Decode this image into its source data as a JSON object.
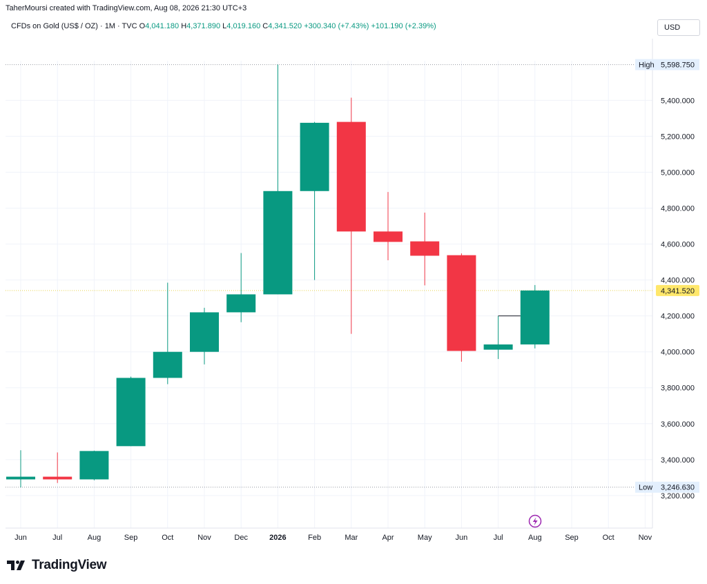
{
  "header": {
    "attribution": "TaherMoursi created with TradingView.com, Aug 08, 2026 21:30 UTC+3",
    "symbol": "CFDs on Gold (US$ / OZ) · 1M · TVC",
    "open_label": "O",
    "open": "4,041.180",
    "high_label": "H",
    "high": "4,371.890",
    "low_label": "L",
    "low": "4,019.160",
    "close_label": "C",
    "close": "4,341.520",
    "change": "+300.340 (+7.43%)",
    "change2": "+101.190 (+2.39%)",
    "currency": "USD"
  },
  "chart_data": {
    "type": "candlestick",
    "categories": [
      "Jun",
      "Jul",
      "Aug",
      "Sep",
      "Oct",
      "Nov",
      "Dec",
      "2026",
      "Feb",
      "Mar",
      "Apr",
      "May",
      "Jun",
      "Jul",
      "Aug"
    ],
    "candles": [
      {
        "o": 3290,
        "h": 3452,
        "l": 3245,
        "c": 3305
      },
      {
        "o": 3305,
        "h": 3440,
        "l": 3270,
        "c": 3290
      },
      {
        "o": 3290,
        "h": 3450,
        "l": 3285,
        "c": 3448
      },
      {
        "o": 3475,
        "h": 3862,
        "l": 3475,
        "c": 3855
      },
      {
        "o": 3855,
        "h": 4385,
        "l": 3820,
        "c": 4000
      },
      {
        "o": 4000,
        "h": 4245,
        "l": 3930,
        "c": 4220
      },
      {
        "o": 4220,
        "h": 4550,
        "l": 4165,
        "c": 4320
      },
      {
        "o": 4320,
        "h": 5598.75,
        "l": 4320,
        "c": 4895
      },
      {
        "o": 4895,
        "h": 5280,
        "l": 4400,
        "c": 5275
      },
      {
        "o": 5280,
        "h": 5415,
        "l": 4100,
        "c": 4670
      },
      {
        "o": 4670,
        "h": 4890,
        "l": 4510,
        "c": 4612
      },
      {
        "o": 4615,
        "h": 4775,
        "l": 4370,
        "c": 4535
      },
      {
        "o": 4538,
        "h": 4548,
        "l": 3945,
        "c": 4005
      },
      {
        "o": 4012,
        "h": 4200,
        "l": 3960,
        "c": 4041.18
      },
      {
        "o": 4041.18,
        "h": 4371.89,
        "l": 4019.16,
        "c": 4341.52
      }
    ],
    "x_axis_labels": [
      "Jun",
      "Jul",
      "Aug",
      "Sep",
      "Oct",
      "Nov",
      "Dec",
      "2026",
      "Feb",
      "Mar",
      "Apr",
      "May",
      "Jun",
      "Jul",
      "Aug",
      "Sep",
      "Oct",
      "Nov"
    ],
    "y_ticks": [
      {
        "value": 3200,
        "label": "3,200.000"
      },
      {
        "value": 3400,
        "label": "3,400.000"
      },
      {
        "value": 3600,
        "label": "3,600.000"
      },
      {
        "value": 3800,
        "label": "3,800.000"
      },
      {
        "value": 4000,
        "label": "4,000.000"
      },
      {
        "value": 4200,
        "label": "4,200.000"
      },
      {
        "value": 4400,
        "label": "4,400.000"
      },
      {
        "value": 4600,
        "label": "4,600.000"
      },
      {
        "value": 4800,
        "label": "4,800.000"
      },
      {
        "value": 5000,
        "label": "5,000.000"
      },
      {
        "value": 5200,
        "label": "5,200.000"
      },
      {
        "value": 5400,
        "label": "5,400.000"
      }
    ],
    "ylim": [
      3115,
      5728
    ],
    "high_marker": {
      "label": "High",
      "value": 5598.75,
      "text": "5,598.750"
    },
    "low_marker": {
      "label": "Low",
      "value": 3246.63,
      "text": "3,246.630"
    },
    "last_price": {
      "value": 4341.52,
      "text": "4,341.520"
    },
    "colors": {
      "up": "#089981",
      "down": "#f23645",
      "grid": "#f0f3fa",
      "axis_text": "#131722",
      "last_price_bg": "#ffe76b",
      "marker_bg": "#e3effd",
      "event_icon": "#9c27b0"
    },
    "grid": true
  },
  "footer": {
    "brand": "TradingView"
  }
}
